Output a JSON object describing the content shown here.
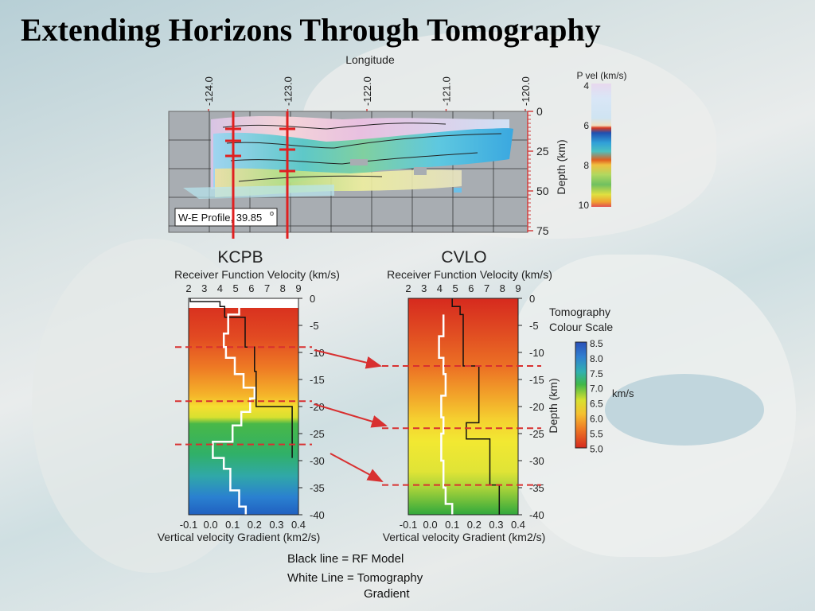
{
  "slide": {
    "title": "Extending Horizons Through Tomography"
  },
  "profile": {
    "xlabel": "Longitude",
    "lon_ticks": [
      "-124.0",
      "-123.0",
      "-122.0",
      "-121.0",
      "-120.0"
    ],
    "depth_ticks": [
      "0",
      "25",
      "50",
      "75"
    ],
    "depth_label": "Depth (km)",
    "annotation": "W-E Profile, 39.85",
    "degree_mark": "o"
  },
  "pvel_bar": {
    "title": "P vel (km/s)",
    "ticks": [
      "4",
      "6",
      "8",
      "10"
    ]
  },
  "kcpb": {
    "name": "KCPB",
    "top_label": "Receiver Function Velocity (km/s)",
    "bottom_label": "Vertical velocity Gradient (km2/s)"
  },
  "cvlo": {
    "name": "CVLO",
    "top_label": "Receiver Function Velocity (km/s)",
    "bottom_label": "Vertical velocity Gradient (km2/s)",
    "depth_label": "Depth (km)"
  },
  "tomo_scale": {
    "title_line1": "Tomography",
    "title_line2": "Colour Scale",
    "unit": "km/s",
    "ticks": [
      "8.5",
      "8.0",
      "7.5",
      "7.0",
      "6.5",
      "6.0",
      "5.5",
      "5.0"
    ]
  },
  "legend": {
    "black": "Black line = RF Model",
    "white_line1": "White Line = Tomography",
    "white_line2": "Gradient"
  },
  "colors": {
    "title": "#000000",
    "red_marker": "#e02020",
    "dashed": "#d83030",
    "panel_grey": "#a8adb2"
  },
  "chart_data": [
    {
      "type": "line",
      "name_ref": "KCPB",
      "top_axis": {
        "label": "Receiver Function Velocity (km/s)",
        "ticks": [
          2,
          3,
          4,
          5,
          6,
          7,
          8,
          9
        ],
        "range": [
          2,
          9
        ]
      },
      "bottom_axis": {
        "label": "Vertical velocity Gradient (km2/s)",
        "ticks": [
          -0.1,
          0.0,
          0.1,
          0.2,
          0.3,
          0.4
        ],
        "range": [
          -0.1,
          0.4
        ]
      },
      "depth_axis": {
        "ticks": [
          0,
          -5,
          -10,
          -15,
          -20,
          -25,
          -30,
          -35,
          -40
        ],
        "range": [
          0,
          -40
        ]
      },
      "rf_model": [
        [
          2.1,
          0
        ],
        [
          2.1,
          -0.6
        ],
        [
          4.0,
          -0.6
        ],
        [
          4.0,
          -1.5
        ],
        [
          4.3,
          -1.5
        ],
        [
          4.3,
          -3.5
        ],
        [
          5.6,
          -3.5
        ],
        [
          5.6,
          -9
        ],
        [
          6.2,
          -9
        ],
        [
          6.2,
          -13.5
        ],
        [
          6.3,
          -13.5
        ],
        [
          6.3,
          -20
        ],
        [
          8.6,
          -20
        ],
        [
          8.6,
          -29.5
        ],
        [
          8.6,
          -29.5
        ]
      ],
      "tomo_gradient": [
        [
          0.13,
          -0.4
        ],
        [
          0.13,
          -3
        ],
        [
          0.08,
          -3
        ],
        [
          0.08,
          -6.5
        ],
        [
          0.06,
          -6.5
        ],
        [
          0.06,
          -9
        ],
        [
          0.07,
          -9
        ],
        [
          0.07,
          -11
        ],
        [
          0.11,
          -11
        ],
        [
          0.11,
          -14
        ],
        [
          0.15,
          -14
        ],
        [
          0.15,
          -16.5
        ],
        [
          0.2,
          -16.5
        ],
        [
          0.2,
          -18.5
        ],
        [
          0.18,
          -18.5
        ],
        [
          0.18,
          -21
        ],
        [
          0.14,
          -21
        ],
        [
          0.14,
          -23.5
        ],
        [
          0.1,
          -23.5
        ],
        [
          0.1,
          -26.5
        ],
        [
          0.01,
          -26.5
        ],
        [
          0.01,
          -29.5
        ],
        [
          0.06,
          -29.5
        ],
        [
          0.06,
          -31.5
        ],
        [
          0.09,
          -31.5
        ],
        [
          0.09,
          -35.5
        ],
        [
          0.13,
          -35.5
        ],
        [
          0.13,
          -38.5
        ],
        [
          0.16,
          -38.5
        ],
        [
          0.16,
          -40
        ]
      ],
      "gradient_background": "velocity colour scale, red at top through orange, yellow, green, to blue at bottom",
      "dashed_lines_depth": [
        -9,
        -19,
        -27
      ]
    },
    {
      "type": "line",
      "name_ref": "CVLO",
      "top_axis": {
        "label": "Receiver Function Velocity (km/s)",
        "ticks": [
          2,
          3,
          4,
          5,
          6,
          7,
          8,
          9
        ],
        "range": [
          2,
          9
        ]
      },
      "bottom_axis": {
        "label": "Vertical velocity Gradient (km2/s)",
        "ticks": [
          -0.1,
          0.0,
          0.1,
          0.2,
          0.3,
          0.4
        ],
        "range": [
          -0.1,
          0.4
        ]
      },
      "depth_axis": {
        "label": "Depth (km)",
        "ticks": [
          0,
          -5,
          -10,
          -15,
          -20,
          -25,
          -30,
          -35,
          -40
        ],
        "range": [
          0,
          -40
        ]
      },
      "rf_model": [
        [
          4.8,
          0
        ],
        [
          4.8,
          -1.5
        ],
        [
          5.3,
          -1.5
        ],
        [
          5.3,
          -3
        ],
        [
          5.5,
          -3
        ],
        [
          5.5,
          -12.5
        ],
        [
          6.5,
          -12.5
        ],
        [
          6.5,
          -17
        ],
        [
          6.5,
          -17
        ],
        [
          6.5,
          -23
        ],
        [
          5.7,
          -23
        ],
        [
          5.7,
          -26
        ],
        [
          7.2,
          -26
        ],
        [
          7.2,
          -34.5
        ],
        [
          7.8,
          -34.5
        ],
        [
          7.8,
          -40
        ]
      ],
      "tomo_gradient": [
        [
          0.06,
          -3
        ],
        [
          0.06,
          -7
        ],
        [
          0.04,
          -7
        ],
        [
          0.04,
          -11
        ],
        [
          0.06,
          -11
        ],
        [
          0.06,
          -14
        ],
        [
          0.07,
          -14
        ],
        [
          0.07,
          -18
        ],
        [
          0.05,
          -18
        ],
        [
          0.05,
          -22
        ],
        [
          0.06,
          -22
        ],
        [
          0.06,
          -25
        ],
        [
          0.05,
          -25
        ],
        [
          0.05,
          -30
        ],
        [
          0.06,
          -30
        ],
        [
          0.06,
          -35
        ],
        [
          0.07,
          -35
        ],
        [
          0.07,
          -38
        ],
        [
          0.1,
          -38
        ],
        [
          0.1,
          -40
        ]
      ],
      "gradient_background": "red at top through orange and yellow to green at bottom",
      "dashed_lines_depth": [
        -12.5,
        -24,
        -34.5
      ]
    },
    {
      "type": "heatmap",
      "name_ref": "W-E Profile",
      "x_ticks": [
        "-124.0",
        "-123.0",
        "-122.0",
        "-121.0",
        "-120.0"
      ],
      "y_ticks": [
        0,
        25,
        50,
        75
      ],
      "colorbar": {
        "title": "P vel (km/s)",
        "range": [
          4,
          10
        ]
      },
      "station_markers_lon": [
        -123.7,
        -123.0
      ]
    }
  ]
}
